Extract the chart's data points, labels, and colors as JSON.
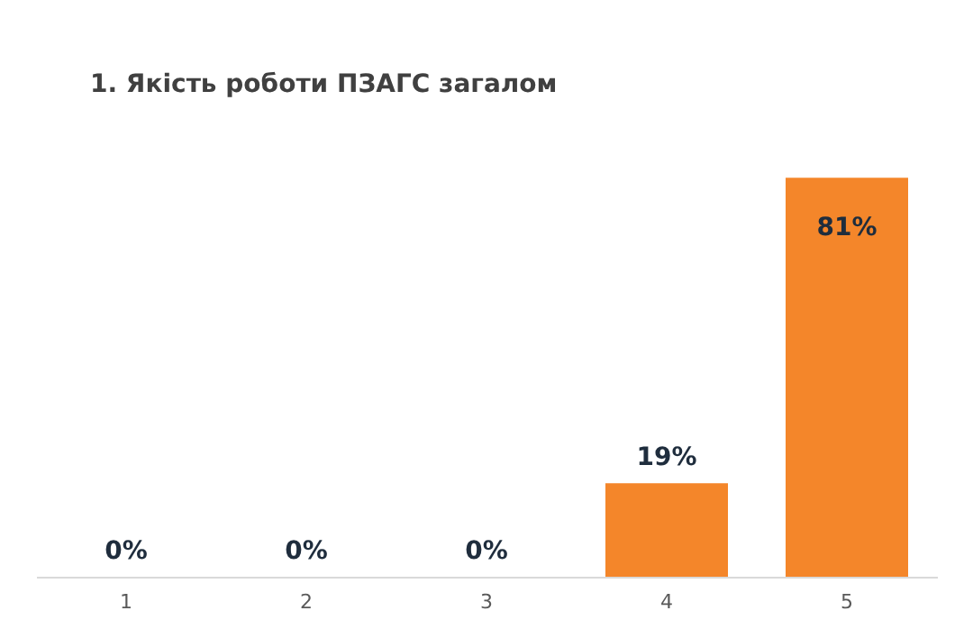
{
  "chart_data": {
    "type": "bar",
    "title": "1. Якість роботи ПЗАГС загалом",
    "categories": [
      "1",
      "2",
      "3",
      "4",
      "5"
    ],
    "values": [
      0,
      0,
      0,
      19,
      81
    ],
    "value_labels": [
      "0%",
      "0%",
      "0%",
      "19%",
      "81%"
    ],
    "color": "#f4862a"
  }
}
